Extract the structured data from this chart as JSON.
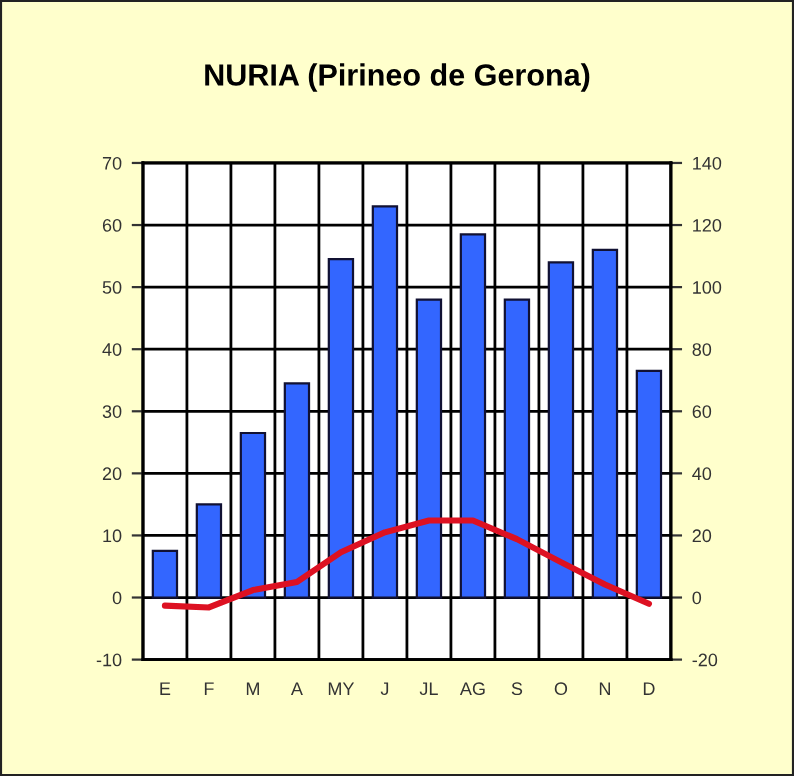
{
  "chart_data": {
    "type": "bar",
    "title": "NURIA (Pirineo de Gerona)",
    "categories": [
      "E",
      "F",
      "M",
      "A",
      "MY",
      "J",
      "JL",
      "AG",
      "S",
      "O",
      "N",
      "D"
    ],
    "series": [
      {
        "axis": "y2",
        "color": "#3366ff",
        "values": [
          15,
          30,
          53,
          69,
          109,
          126,
          96,
          117,
          96,
          108,
          112,
          73
        ]
      },
      {
        "type": "line",
        "axis": "y",
        "color": "#dd1122",
        "values": [
          -1.3,
          -1.6,
          1.2,
          2.5,
          7.3,
          10.5,
          12.4,
          12.4,
          9.4,
          5.7,
          2.1,
          -1.0
        ]
      }
    ],
    "ylim": [
      -10,
      70
    ],
    "yticks": [
      -10,
      0,
      10,
      20,
      30,
      40,
      50,
      60,
      70
    ],
    "y2lim": [
      -20,
      140
    ],
    "y2ticks": [
      -20,
      0,
      20,
      40,
      60,
      80,
      100,
      120,
      140
    ],
    "grid": true,
    "line_style": "solid",
    "marker": "none"
  }
}
